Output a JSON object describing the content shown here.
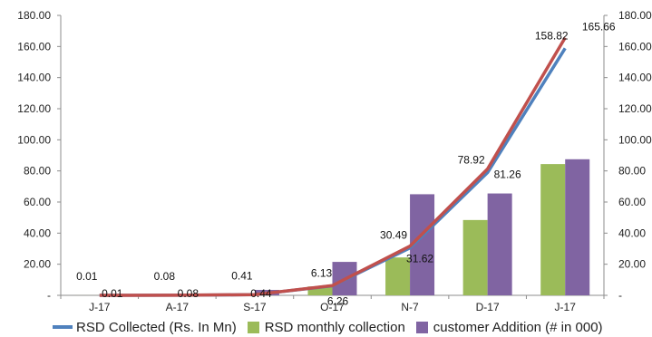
{
  "chart_data": {
    "type": "bar",
    "categories": [
      "J-17",
      "A-17",
      "S-17",
      "O-17",
      "N-7",
      "D-17",
      "J-17"
    ],
    "ylim": [
      0,
      180
    ],
    "y_ticks": [
      "-",
      "20.00",
      "40.00",
      "60.00",
      "80.00",
      "100.00",
      "120.00",
      "140.00",
      "160.00",
      "180.00"
    ],
    "y2_ticks": [
      "-",
      "20.00",
      "40.00",
      "60.00",
      "80.00",
      "100.00",
      "120.00",
      "140.00",
      "160.00",
      "180.00"
    ],
    "grid": false,
    "legend_position": "bottom",
    "series": [
      {
        "name": "RSD Collected (Rs. In Mn)",
        "kind": "line",
        "color": "#4f81bd",
        "values": [
          0.01,
          0.08,
          0.41,
          6.13,
          30.49,
          78.92,
          158.82
        ],
        "labels": [
          "0.01",
          "0.08",
          "0.41",
          "6.13",
          "30.49",
          "78.92",
          "158.82"
        ]
      },
      {
        "name": "RSD monthly collection",
        "kind": "bar",
        "color": "#9bbb59",
        "values": [
          0.01,
          0.07,
          0.33,
          5.72,
          24.36,
          48.43,
          84.4
        ]
      },
      {
        "name": "customer Addition (# in 000)",
        "kind": "bar",
        "color": "#8064a2",
        "values": [
          0,
          0,
          3.5,
          21.5,
          65,
          65.5,
          87.5
        ]
      }
    ],
    "extra_line": {
      "kind": "line",
      "color": "#c0504d",
      "values": [
        0.01,
        0.08,
        0.44,
        6.26,
        31.62,
        81.26,
        165.66
      ],
      "labels": [
        "0.01",
        "0.08",
        "0.44",
        "6.26",
        "31.62",
        "81.26",
        "165.66"
      ]
    }
  }
}
